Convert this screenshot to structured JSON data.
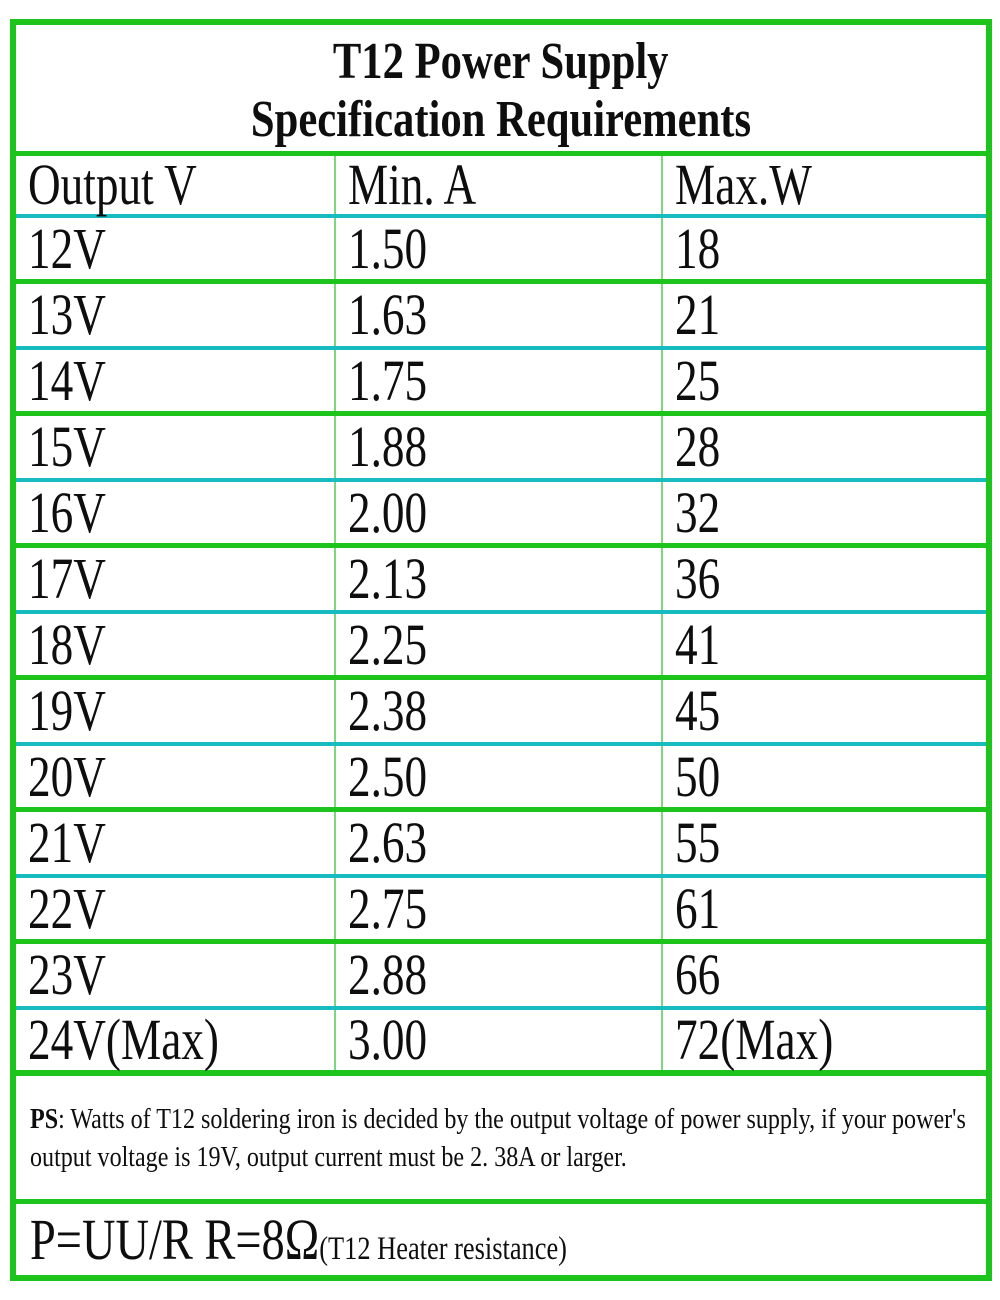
{
  "chart_data": {
    "type": "table",
    "title": "T12 Power Supply Specification Requirements",
    "title_line1": "T12 Power Supply",
    "title_line2": "Specification Requirements",
    "columns": [
      "Output V",
      "Min. A",
      "Max.W"
    ],
    "rows": [
      [
        "12V",
        "1.50",
        "18"
      ],
      [
        "13V",
        "1.63",
        "21"
      ],
      [
        "14V",
        "1.75",
        "25"
      ],
      [
        "15V",
        "1.88",
        "28"
      ],
      [
        "16V",
        "2.00",
        "32"
      ],
      [
        "17V",
        "2.13",
        "36"
      ],
      [
        "18V",
        "2.25",
        "41"
      ],
      [
        "19V",
        "2.38",
        "45"
      ],
      [
        "20V",
        "2.50",
        "50"
      ],
      [
        "21V",
        "2.63",
        "55"
      ],
      [
        "22V",
        "2.75",
        "61"
      ],
      [
        "23V",
        "2.88",
        "66"
      ],
      [
        "24V(Max)",
        "3.00",
        "72(Max)"
      ]
    ]
  },
  "notes": {
    "ps_label": "PS",
    "ps_text": ": Watts of T12 soldering iron is decided by the output voltage of power supply, if your power's output voltage is 19V, output current must be 2. 38A or larger.",
    "formula_main": "P=UU/R R=8Ω",
    "formula_detail": "(T12 Heater resistance)"
  },
  "colors": {
    "border_green": "#1cc41c",
    "separator_cyan": "#17bcc0",
    "column_divider_green": "#7ed77e",
    "text": "#0e0e0e",
    "background": "#ffffff"
  }
}
